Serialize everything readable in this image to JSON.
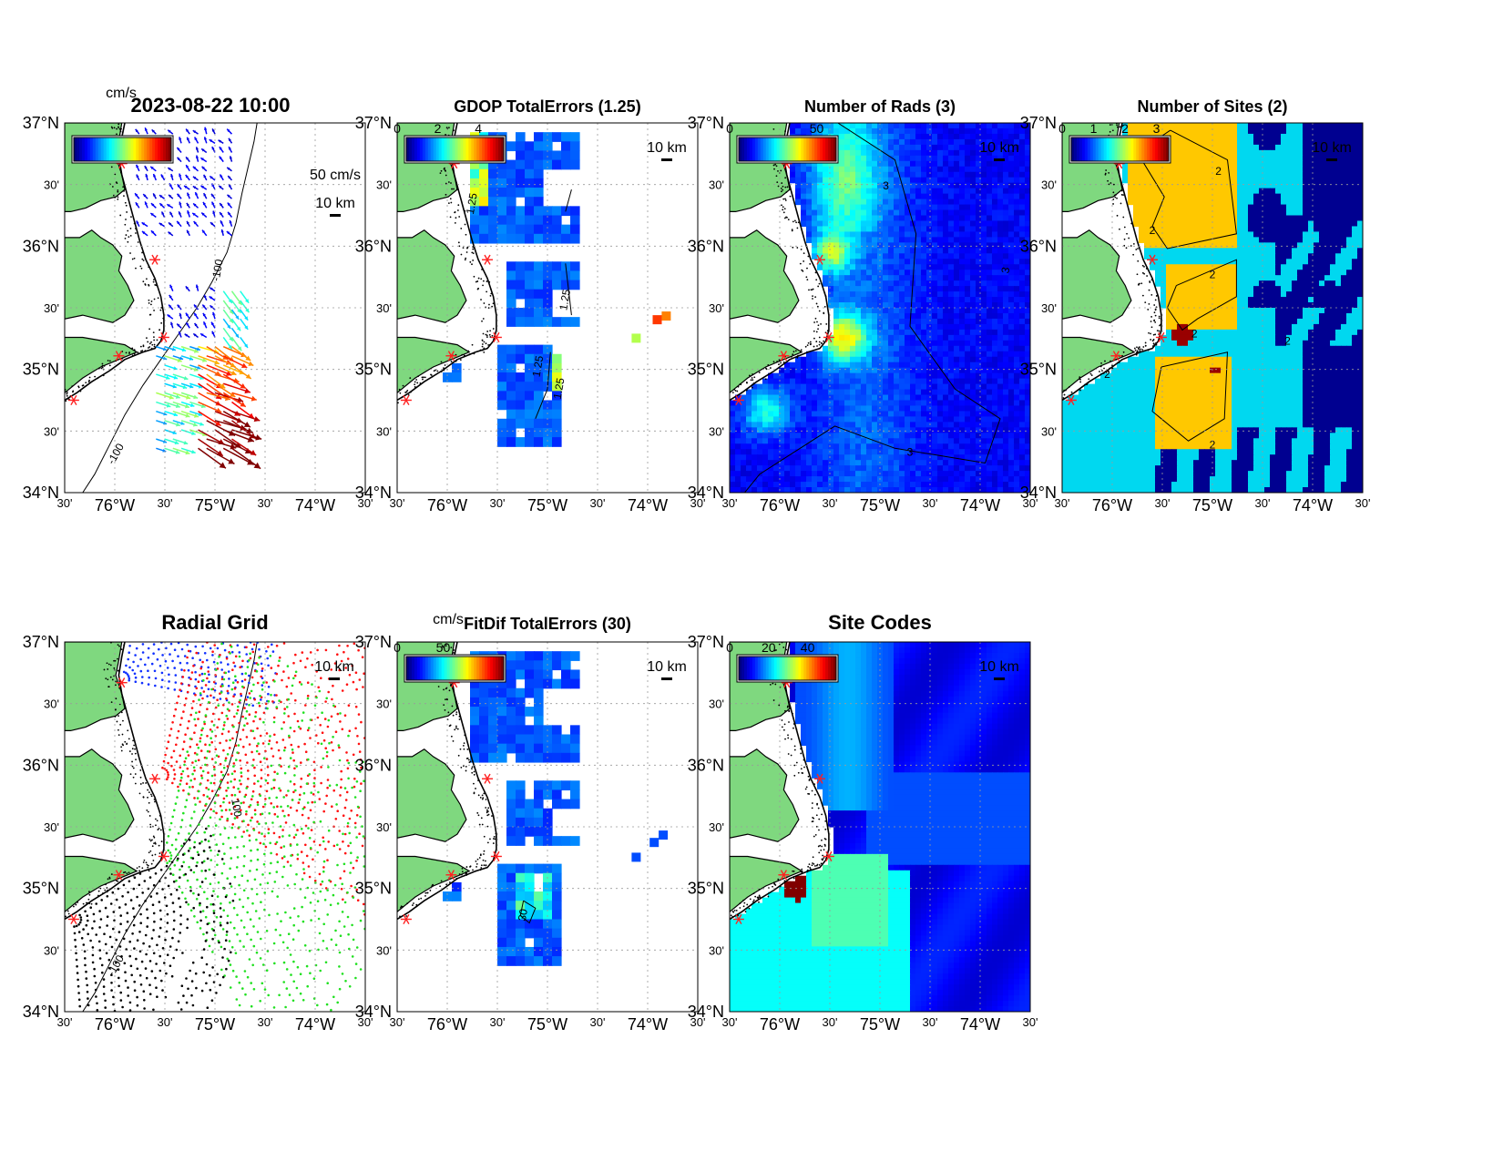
{
  "figure": {
    "timestamp": "2023-08-22 10:00",
    "scale_bar_label": "10 km",
    "vector_scale_label": "50 cm/s",
    "colorbar_unit": "cm/s",
    "lat_ticks": [
      "37°N",
      "30'",
      "36°N",
      "30'",
      "35°N",
      "30'",
      "34°N"
    ],
    "lon_ticks": [
      "30'",
      "76°W",
      "30'",
      "75°W",
      "30'",
      "74°W",
      "30'"
    ],
    "colors": {
      "land": "#7fd87f",
      "coast": "#000000",
      "site_marker": "#ff2020",
      "grid_site_blue": "#1030ff",
      "grid_site_red": "#ff1010",
      "grid_site_green": "#20e020",
      "grid_site_black": "#000000"
    }
  },
  "chart_data": [
    {
      "type": "heatmap",
      "panel": "surface-currents",
      "title": "2023-08-22 10:00",
      "variable": "current vectors",
      "colorbar_label": "cm/s",
      "contour_labels": [
        "-100",
        "-100"
      ],
      "xlim": [
        -76.5,
        -73.5
      ],
      "ylim": [
        34.0,
        37.0
      ],
      "grid": true
    },
    {
      "type": "heatmap",
      "panel": "gdop-total-errors",
      "title": "GDOP TotalErrors (1.25)",
      "colorbar_ticks": [
        "0",
        "2",
        "4"
      ],
      "contour_level": 1.25,
      "contour_labels": [
        "1.25",
        "1.25",
        "1.25",
        "1.25"
      ],
      "xlim": [
        -76.5,
        -73.5
      ],
      "ylim": [
        34.0,
        37.0
      ],
      "grid": true
    },
    {
      "type": "heatmap",
      "panel": "number-of-rads",
      "title": "Number of Rads (3)",
      "colorbar_ticks": [
        "0",
        "50"
      ],
      "contour_level": 3,
      "contour_labels": [
        "3",
        "3",
        "3"
      ],
      "xlim": [
        -76.5,
        -73.5
      ],
      "ylim": [
        34.0,
        37.0
      ],
      "grid": true
    },
    {
      "type": "heatmap",
      "panel": "number-of-sites",
      "title": "Number of Sites (2)",
      "colorbar_ticks": [
        "0",
        "1",
        "2",
        "3"
      ],
      "contour_level": 2,
      "contour_labels": [
        "2",
        "2",
        "2",
        "2",
        "2",
        "2",
        "2"
      ],
      "xlim": [
        -76.5,
        -73.5
      ],
      "ylim": [
        34.0,
        37.0
      ],
      "grid": true
    },
    {
      "type": "scatter",
      "panel": "radial-grid",
      "title": "Radial Grid",
      "contour_labels": [
        "100",
        "-100"
      ],
      "xlim": [
        -76.5,
        -73.5
      ],
      "ylim": [
        34.0,
        37.0
      ],
      "grid": true
    },
    {
      "type": "heatmap",
      "panel": "fitdif-total-errors",
      "title": "FitDif TotalErrors (30)",
      "colorbar_label": "cm/s",
      "colorbar_ticks": [
        "0",
        "50"
      ],
      "contour_level": 30,
      "contour_labels": [
        "30"
      ],
      "xlim": [
        -76.5,
        -73.5
      ],
      "ylim": [
        34.0,
        37.0
      ],
      "grid": true
    },
    {
      "type": "heatmap",
      "panel": "site-codes",
      "title": "Site Codes",
      "colorbar_ticks": [
        "0",
        "20",
        "40"
      ],
      "xlim": [
        -76.5,
        -73.5
      ],
      "ylim": [
        34.0,
        37.0
      ],
      "grid": true
    }
  ]
}
